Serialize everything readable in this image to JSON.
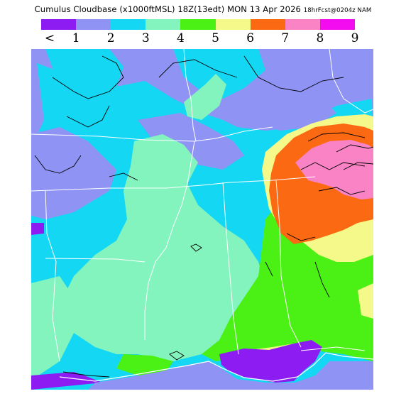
{
  "header": {
    "title_main": "Cumulus Cloudbase (x1000ftMSL) 18Z(13edt) MON 13 Apr 2026",
    "title_forecast": "18hrFcst@0204z NAM"
  },
  "legend": {
    "swatches": [
      "#8d1cf2",
      "#8f93f4",
      "#14d7f4",
      "#84f4bf",
      "#4bf114",
      "#f5f98a",
      "#fb6a12",
      "#f983c4",
      "#f40cf1"
    ],
    "labels": [
      "<",
      "1",
      "2",
      "3",
      "4",
      "5",
      "6",
      "7",
      "8",
      "9"
    ]
  },
  "map": {
    "colors": {
      "lt1": "#8d1cf2",
      "v1_2": "#8f93f4",
      "v2_3": "#14d7f4",
      "v3_4": "#84f4bf",
      "v4_5": "#4bf114",
      "v5_6": "#f5f98a",
      "v6_7": "#fb6a12",
      "v7_8": "#f983c4"
    }
  }
}
